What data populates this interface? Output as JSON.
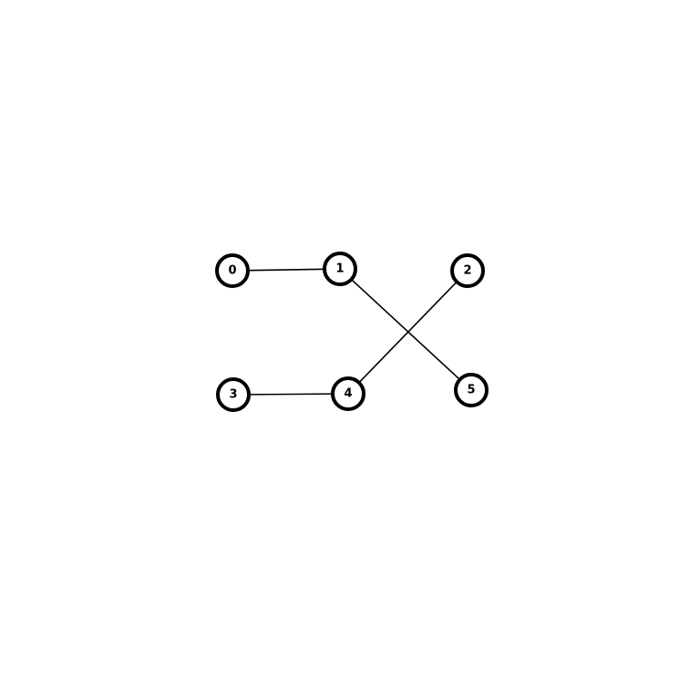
{
  "graph": {
    "nodes": [
      {
        "id": "0",
        "label": "0"
      },
      {
        "id": "1",
        "label": "1"
      },
      {
        "id": "2",
        "label": "2"
      },
      {
        "id": "3",
        "label": "3"
      },
      {
        "id": "4",
        "label": "4"
      },
      {
        "id": "5",
        "label": "5"
      }
    ],
    "edges": [
      {
        "source": "0",
        "target": "1"
      },
      {
        "source": "1",
        "target": "5"
      },
      {
        "source": "2",
        "target": "4"
      },
      {
        "source": "3",
        "target": "4"
      }
    ]
  }
}
